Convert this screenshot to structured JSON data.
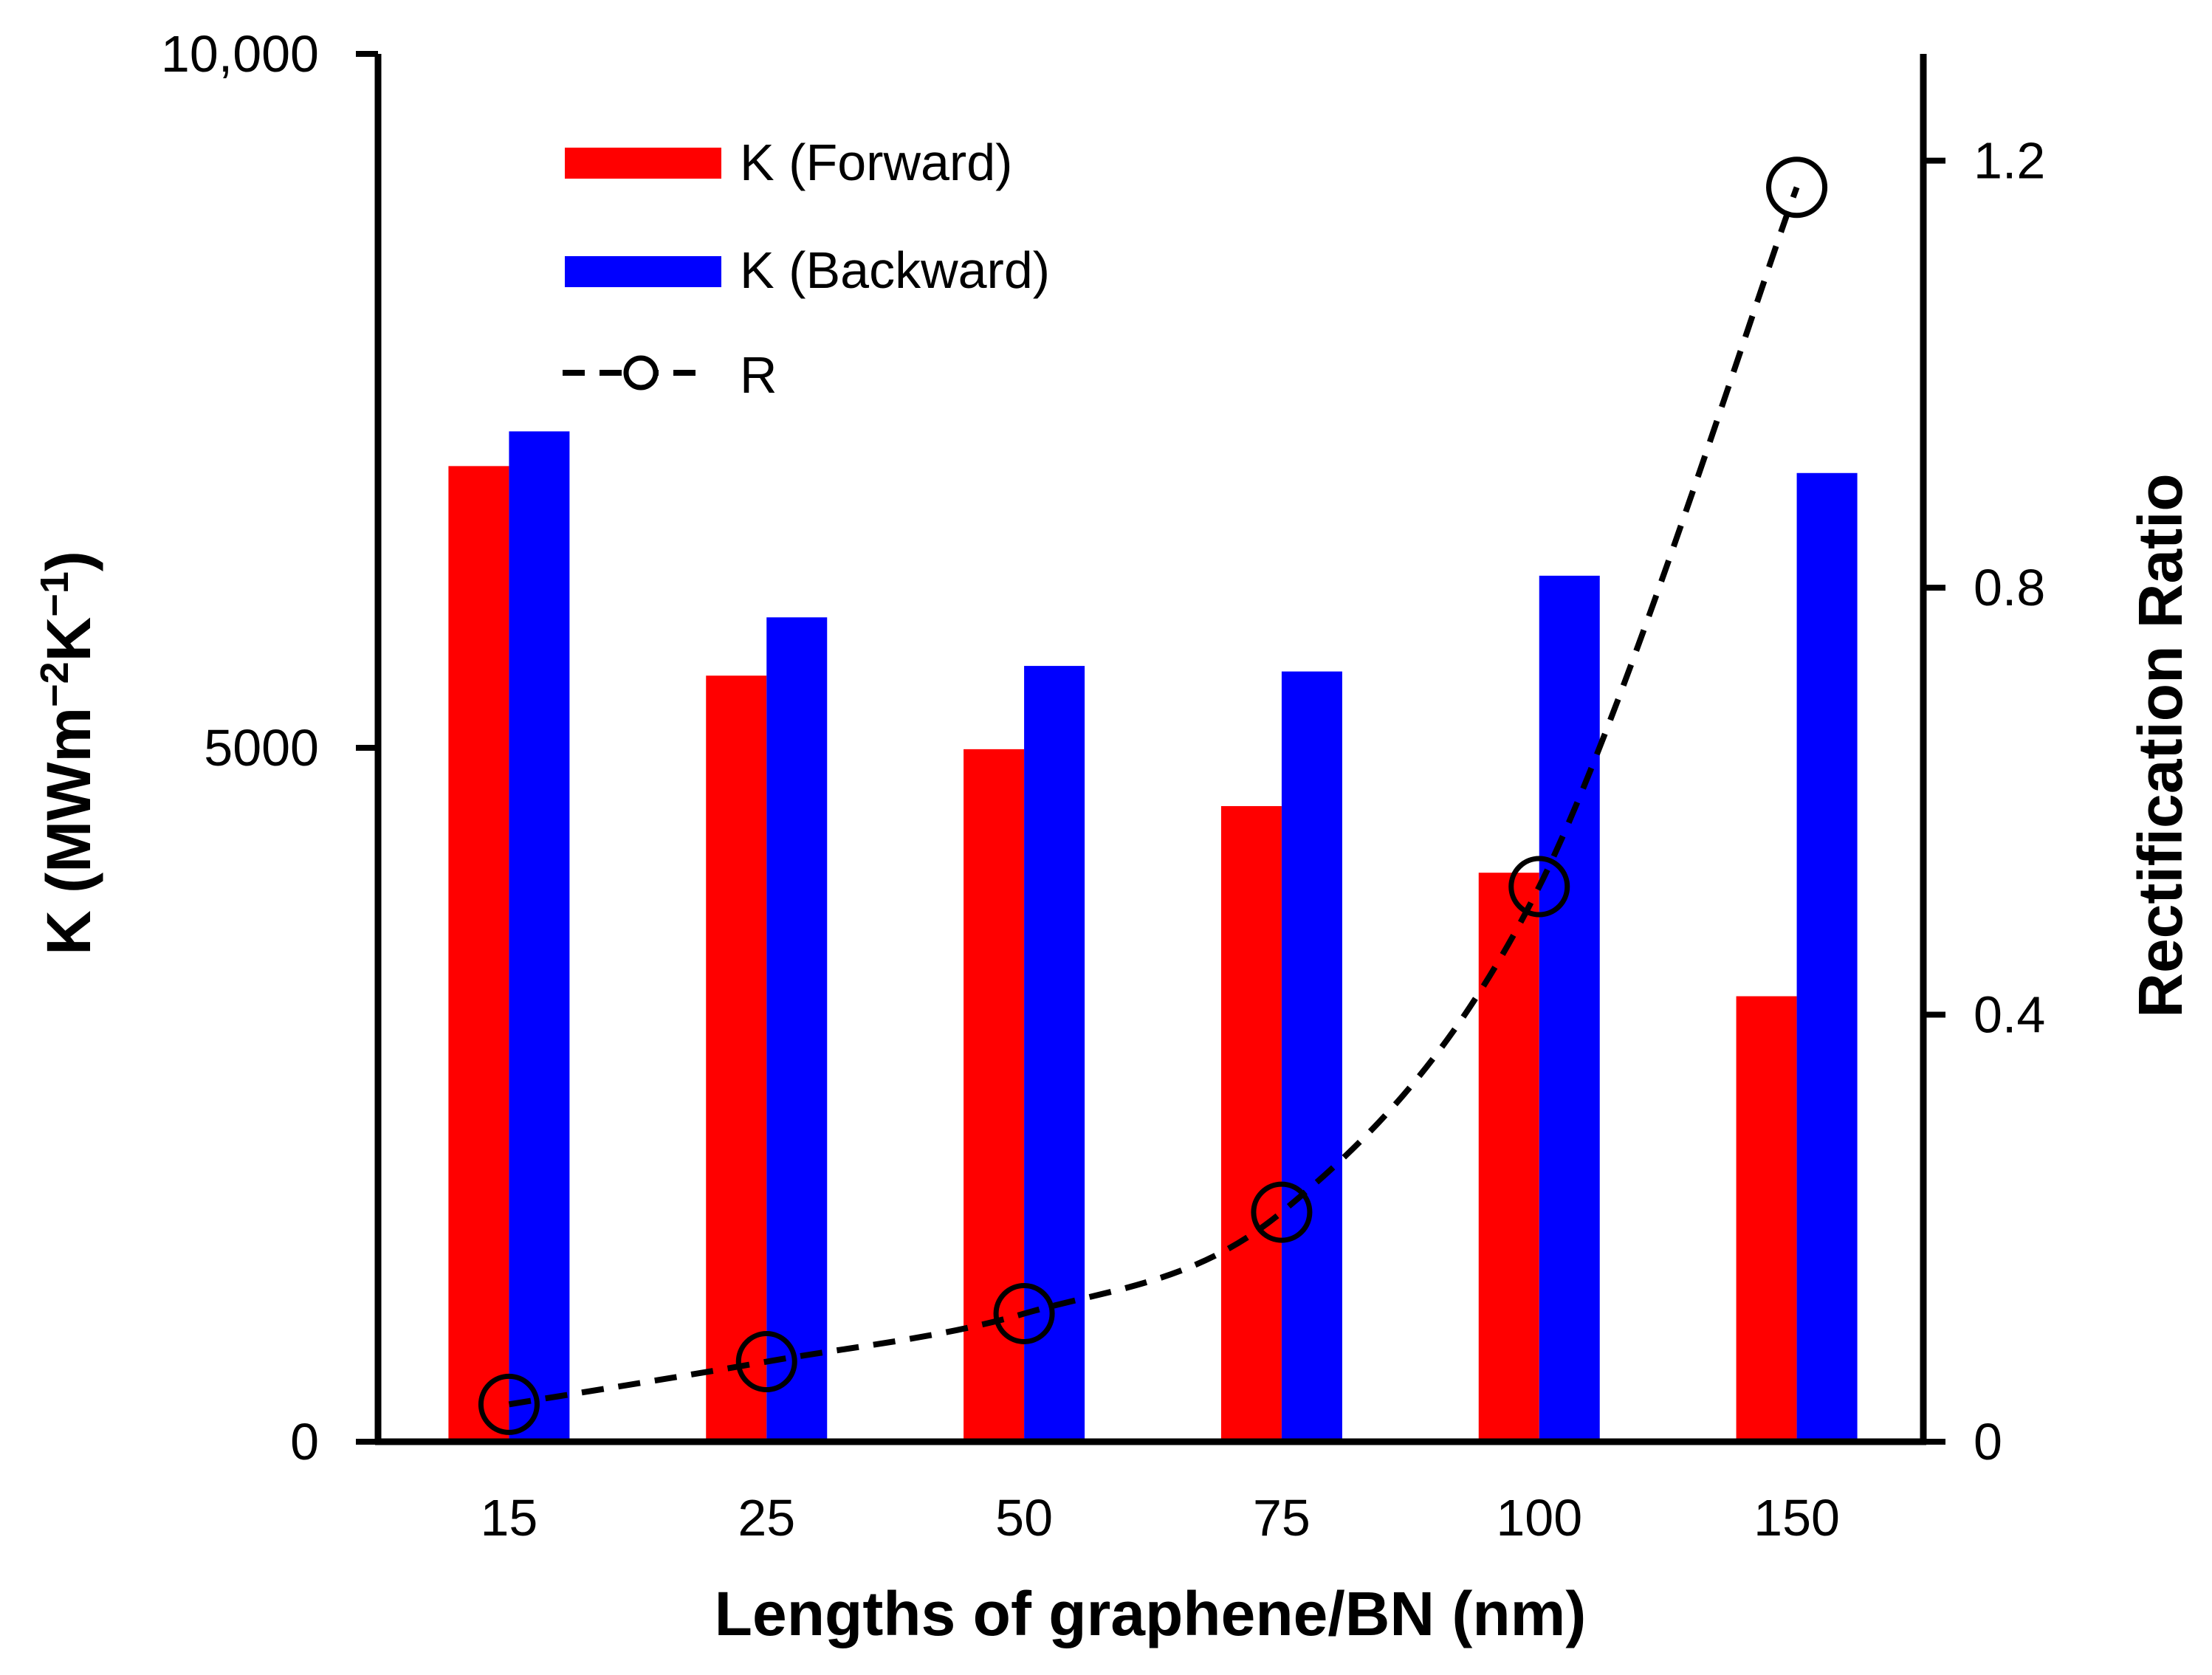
{
  "chart_data": {
    "type": "bar",
    "categories": [
      "15",
      "25",
      "50",
      "75",
      "100",
      "150"
    ],
    "xlabel": "Lengths of graphene/BN (nm)",
    "ylabel": {
      "base": "K (MWm",
      "sup1": "−2",
      "mid": "K",
      "sup2": "−1",
      "end": ")"
    },
    "y2label": "Rectification Ratio",
    "ylim": [
      0,
      10000
    ],
    "yticks": [
      {
        "value": 0,
        "label": "0"
      },
      {
        "value": 5000,
        "label": "5000"
      },
      {
        "value": 10000,
        "label": "10,000"
      }
    ],
    "y2lim": [
      0,
      1.3
    ],
    "y2ticks": [
      {
        "value": 0,
        "label": "0"
      },
      {
        "value": 0.4,
        "label": "0.4"
      },
      {
        "value": 0.8,
        "label": "0.8"
      },
      {
        "value": 1.2,
        "label": "1.2"
      }
    ],
    "series": [
      {
        "name": "K (Forward)",
        "kind": "bar",
        "color": "#ff0000",
        "values": [
          7030,
          5520,
          4990,
          4580,
          4100,
          3210
        ]
      },
      {
        "name": "K (Backward)",
        "kind": "bar",
        "color": "#0000ff",
        "values": [
          7280,
          5940,
          5590,
          5550,
          6240,
          6980
        ]
      },
      {
        "name": "R",
        "kind": "line",
        "axis": "right",
        "color": "#000000",
        "style": "dashed",
        "marker": "open-circle",
        "values": [
          0.035,
          0.075,
          0.12,
          0.215,
          0.52,
          1.175
        ]
      }
    ],
    "legend_position": "top-left",
    "grid": false
  }
}
